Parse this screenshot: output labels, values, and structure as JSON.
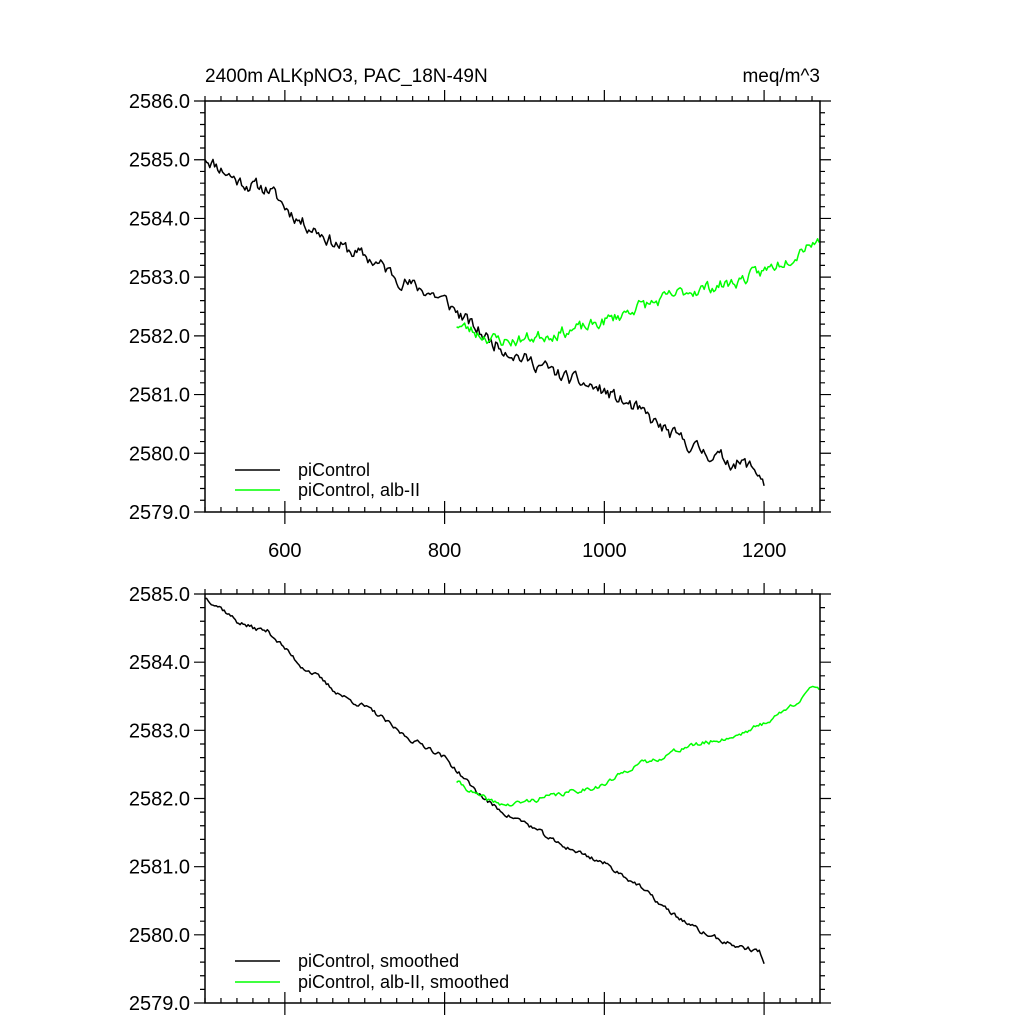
{
  "chart_data": [
    {
      "type": "line",
      "title": "2400m ALKpNO3, PAC_18N-49N",
      "units": "meq/m^3",
      "xlim": [
        500,
        1270
      ],
      "ylim": [
        2579.0,
        2586.0
      ],
      "xticks": [
        600,
        800,
        1000,
        1200
      ],
      "xtick_labels": [
        "600",
        "800",
        "1000",
        "1200"
      ],
      "yticks": [
        2579.0,
        2580.0,
        2581.0,
        2582.0,
        2583.0,
        2584.0,
        2585.0,
        2586.0
      ],
      "ytick_labels": [
        "2579.0",
        "2580.0",
        "2581.0",
        "2582.0",
        "2583.0",
        "2584.0",
        "2585.0",
        "2586.0"
      ],
      "legend_position": "bottom-left",
      "series": [
        {
          "name": "piControl",
          "color": "#000000",
          "noise": 0.1,
          "seed": 11,
          "x": [
            500,
            520,
            540,
            560,
            580,
            600,
            620,
            640,
            660,
            680,
            700,
            720,
            740,
            760,
            780,
            800,
            820,
            840,
            860,
            880,
            900,
            920,
            940,
            960,
            980,
            1000,
            1020,
            1040,
            1060,
            1080,
            1100,
            1120,
            1140,
            1160,
            1180,
            1195,
            1200
          ],
          "values": [
            2585.05,
            2584.85,
            2584.65,
            2584.55,
            2584.5,
            2584.2,
            2583.95,
            2583.8,
            2583.6,
            2583.45,
            2583.35,
            2583.2,
            2583.0,
            2582.85,
            2582.75,
            2582.6,
            2582.35,
            2582.1,
            2581.9,
            2581.75,
            2581.6,
            2581.5,
            2581.35,
            2581.25,
            2581.15,
            2581.05,
            2580.9,
            2580.75,
            2580.55,
            2580.35,
            2580.2,
            2580.05,
            2579.95,
            2579.85,
            2579.8,
            2579.65,
            2579.5
          ]
        },
        {
          "name": "piControl, alb-II",
          "color": "#00ff00",
          "noise": 0.09,
          "seed": 23,
          "x": [
            815,
            840,
            860,
            880,
            900,
            920,
            940,
            960,
            980,
            1000,
            1020,
            1040,
            1060,
            1080,
            1100,
            1120,
            1140,
            1160,
            1180,
            1200,
            1220,
            1240,
            1255,
            1270
          ],
          "values": [
            2582.2,
            2582.05,
            2581.95,
            2581.9,
            2581.95,
            2582.0,
            2582.05,
            2582.1,
            2582.15,
            2582.25,
            2582.35,
            2582.5,
            2582.55,
            2582.65,
            2582.75,
            2582.8,
            2582.85,
            2582.9,
            2583.0,
            2583.1,
            2583.25,
            2583.4,
            2583.6,
            2583.6
          ]
        }
      ]
    },
    {
      "type": "line",
      "xlim": [
        500,
        1270
      ],
      "ylim": [
        2579.0,
        2585.0
      ],
      "xticks": [
        600,
        800,
        1000,
        1200
      ],
      "yticks": [
        2579.0,
        2580.0,
        2581.0,
        2582.0,
        2583.0,
        2584.0,
        2585.0
      ],
      "ytick_labels": [
        "2579.0",
        "2580.0",
        "2581.0",
        "2582.0",
        "2583.0",
        "2584.0",
        "2585.0"
      ],
      "legend_position": "bottom-left",
      "series": [
        {
          "name": "piControl, smoothed",
          "color": "#000000",
          "noise": 0.03,
          "seed": 37,
          "x": [
            500,
            520,
            540,
            560,
            580,
            600,
            620,
            640,
            660,
            680,
            700,
            720,
            740,
            760,
            780,
            800,
            820,
            840,
            860,
            880,
            900,
            920,
            940,
            960,
            980,
            1000,
            1020,
            1040,
            1060,
            1080,
            1100,
            1120,
            1140,
            1160,
            1180,
            1195,
            1200
          ],
          "values": [
            2584.95,
            2584.8,
            2584.6,
            2584.5,
            2584.45,
            2584.2,
            2583.95,
            2583.8,
            2583.6,
            2583.45,
            2583.35,
            2583.2,
            2583.0,
            2582.85,
            2582.75,
            2582.6,
            2582.35,
            2582.1,
            2581.9,
            2581.75,
            2581.65,
            2581.5,
            2581.35,
            2581.25,
            2581.15,
            2581.05,
            2580.9,
            2580.75,
            2580.55,
            2580.35,
            2580.2,
            2580.05,
            2579.95,
            2579.85,
            2579.8,
            2579.75,
            2579.55
          ]
        },
        {
          "name": "piControl, alb-II, smoothed",
          "color": "#00ff00",
          "noise": 0.03,
          "seed": 41,
          "x": [
            815,
            840,
            860,
            880,
            900,
            920,
            940,
            960,
            980,
            1000,
            1020,
            1040,
            1060,
            1080,
            1100,
            1120,
            1140,
            1160,
            1180,
            1200,
            1220,
            1240,
            1255,
            1270
          ],
          "values": [
            2582.25,
            2582.05,
            2581.95,
            2581.9,
            2581.95,
            2582.0,
            2582.05,
            2582.1,
            2582.15,
            2582.2,
            2582.35,
            2582.5,
            2582.55,
            2582.65,
            2582.75,
            2582.8,
            2582.85,
            2582.9,
            2583.0,
            2583.1,
            2583.25,
            2583.4,
            2583.6,
            2583.6
          ]
        }
      ]
    }
  ]
}
